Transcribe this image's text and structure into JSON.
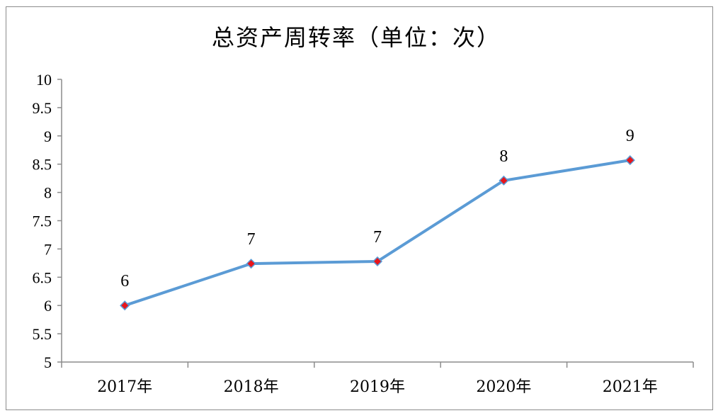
{
  "chart_data": {
    "type": "line",
    "title": "总资产周转率（单位：次）",
    "xlabel": "",
    "ylabel": "",
    "categories": [
      "2017年",
      "2018年",
      "2019年",
      "2020年",
      "2021年"
    ],
    "series": [
      {
        "values": [
          6.0,
          6.74,
          6.78,
          8.21,
          8.57
        ],
        "data_labels": [
          "6",
          "7",
          "7",
          "8",
          "9"
        ]
      }
    ],
    "ylim": [
      5,
      10
    ],
    "yticks": [
      "5",
      "5.5",
      "6",
      "6.5",
      "7",
      "7.5",
      "8",
      "8.5",
      "9",
      "9.5",
      "10"
    ],
    "ytick_values": [
      5,
      5.5,
      6,
      6.5,
      7,
      7.5,
      8,
      8.5,
      9,
      9.5,
      10
    ],
    "grid": false,
    "legend": "none",
    "colors": {
      "line": "#5b9bd5",
      "marker_fill": "#e8151b",
      "marker_stroke": "#5b9bd5",
      "axis": "#8c8c8c"
    }
  }
}
